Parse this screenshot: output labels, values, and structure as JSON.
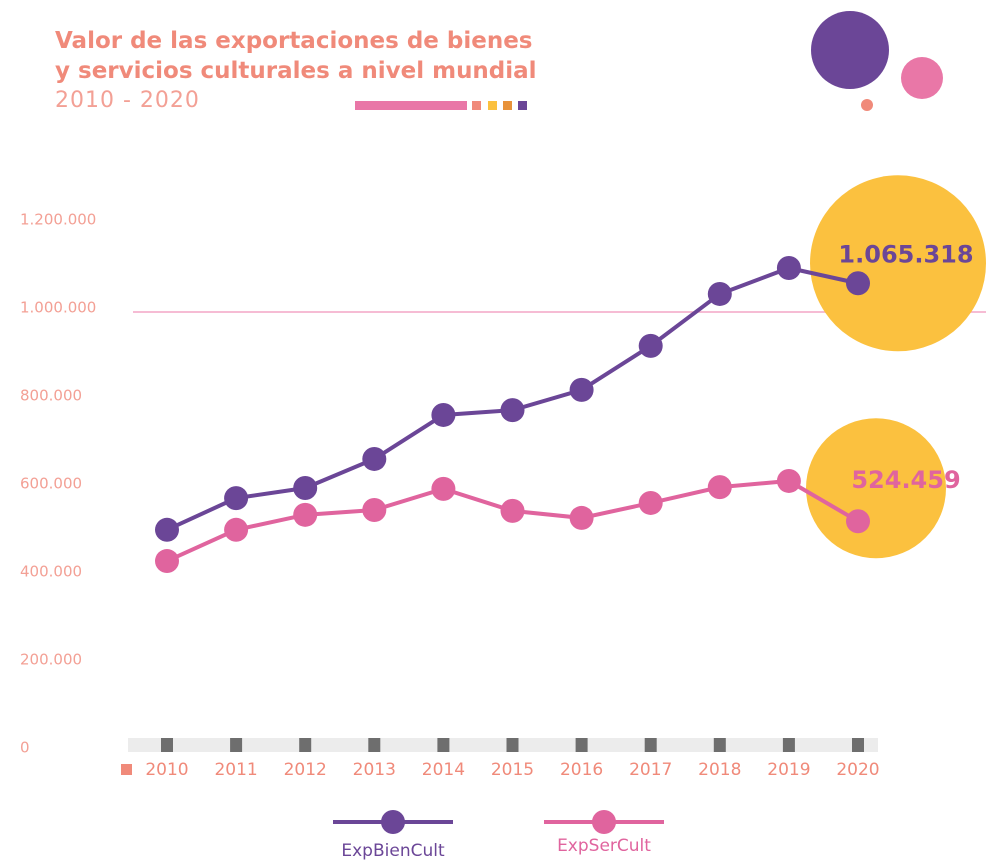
{
  "chart_data": {
    "type": "line",
    "title": "Valor de las exportaciones de bienes y servicios culturales a nivel mundial",
    "subtitle": "2010 - 2020",
    "categories": [
      "2010",
      "2011",
      "2012",
      "2013",
      "2014",
      "2015",
      "2016",
      "2017",
      "2018",
      "2019",
      "2020"
    ],
    "series": [
      {
        "name": "ExpBienCult",
        "color": "#6b4697",
        "values": [
          505000,
          577000,
          600000,
          666000,
          766000,
          777000,
          823000,
          923000,
          1041000,
          1100000,
          1065318
        ],
        "value_labels": [
          null,
          null,
          null,
          null,
          null,
          null,
          null,
          null,
          null,
          null,
          "1.065.318"
        ]
      },
      {
        "name": "ExpSerCult",
        "color": "#e0649e",
        "values": [
          434000,
          505000,
          539000,
          550000,
          598000,
          548000,
          532000,
          566000,
          602000,
          616000,
          524459
        ],
        "value_labels": [
          null,
          null,
          null,
          null,
          null,
          null,
          null,
          null,
          null,
          null,
          "524.459"
        ]
      }
    ],
    "ylim": [
      0,
      1300000
    ],
    "yticks": [
      0,
      {
        "value": 200000,
        "label": "200.000"
      },
      {
        "value": 400000,
        "label": "400.000"
      },
      {
        "value": 600000,
        "label": "600.000"
      },
      {
        "value": 800000,
        "label": "800.000"
      },
      {
        "value": 1000000,
        "label": "1.000.000"
      },
      {
        "value": 1200000,
        "label": "1.200.000"
      }
    ],
    "reference_line": 1000000,
    "highlight_color": "#fbc13f"
  }
}
